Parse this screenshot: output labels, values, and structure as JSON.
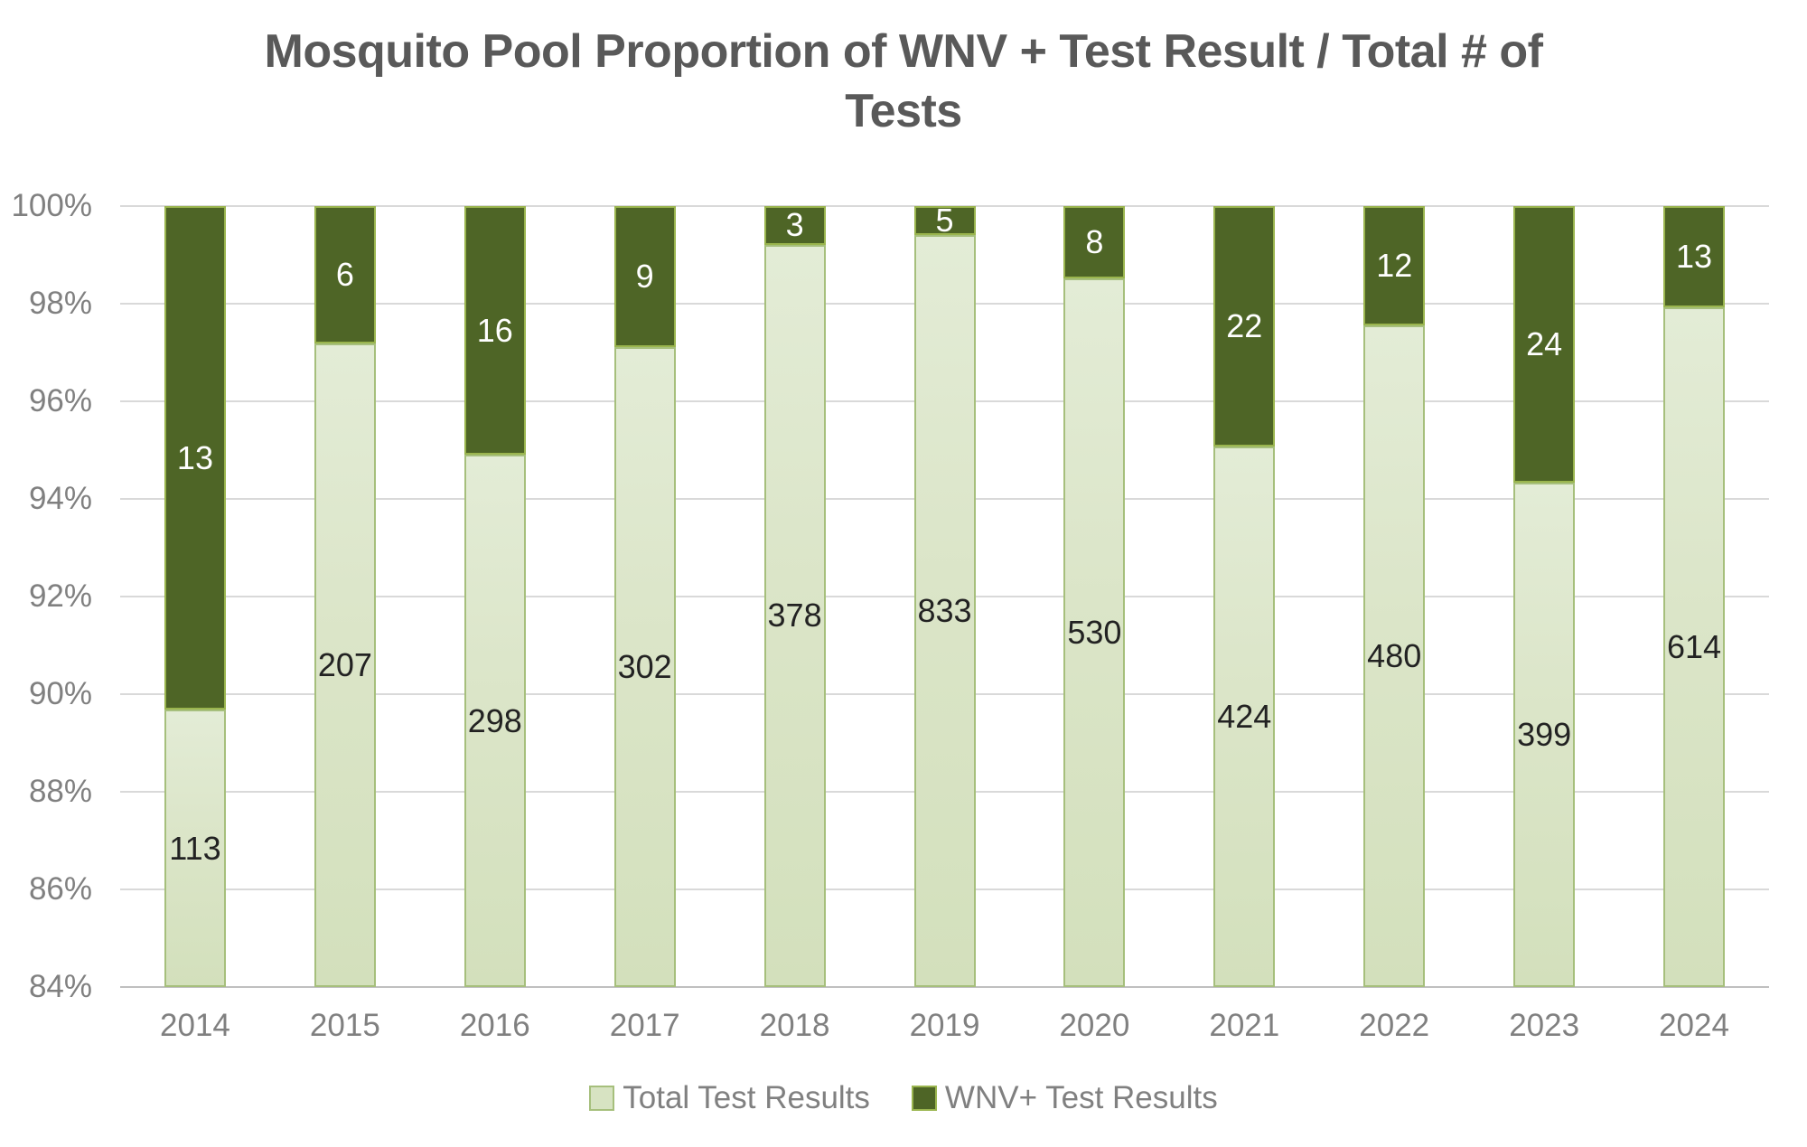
{
  "title": "Mosquito Pool Proportion of WNV + Test Result / Total # of Tests",
  "title_lines": [
    "Mosquito Pool Proportion of WNV + Test Result / Total # of",
    "Tests"
  ],
  "legend": {
    "total_label": "Total Test Results",
    "wnv_label": "WNV+ Test Results"
  },
  "colors": {
    "total_fill": "#dbe5c8",
    "total_border": "#a6bf7c",
    "wnv_fill": "#4e6526",
    "wnv_border": "#9ab54e",
    "gridline": "#d9d9d9",
    "axis_line": "#bfbfbf",
    "axis_text": "#808080",
    "title_text": "#595959",
    "label_on_light": "#222222",
    "label_on_dark": "#ffffff"
  },
  "chart_data": {
    "type": "bar",
    "subtype": "stacked-100-percent",
    "title": "Mosquito Pool Proportion of WNV + Test Result / Total # of Tests",
    "categories": [
      "2014",
      "2015",
      "2016",
      "2017",
      "2018",
      "2019",
      "2020",
      "2021",
      "2022",
      "2023",
      "2024"
    ],
    "series": [
      {
        "name": "Total Test Results",
        "values": [
          113,
          207,
          298,
          302,
          378,
          833,
          530,
          424,
          480,
          399,
          614
        ],
        "color": "#dbe5c8"
      },
      {
        "name": "WNV+ Test Results",
        "values": [
          13,
          6,
          16,
          9,
          3,
          5,
          8,
          22,
          12,
          24,
          13
        ],
        "color": "#4e6526"
      }
    ],
    "xlabel": "",
    "ylabel": "",
    "y_axis": {
      "unit": "%",
      "min": 84,
      "max": 100,
      "tick_step": 2,
      "ticks": [
        {
          "value": 100,
          "label": "100%"
        },
        {
          "value": 98,
          "label": "98%"
        },
        {
          "value": 96,
          "label": "96%"
        },
        {
          "value": 94,
          "label": "94%"
        },
        {
          "value": 92,
          "label": "92%"
        },
        {
          "value": 90,
          "label": "90%"
        },
        {
          "value": 88,
          "label": "88%"
        },
        {
          "value": 86,
          "label": "86%"
        },
        {
          "value": 84,
          "label": "84%"
        }
      ]
    },
    "grid": true,
    "legend_position": "bottom",
    "data_labels": "shown (counts inside segments)"
  }
}
